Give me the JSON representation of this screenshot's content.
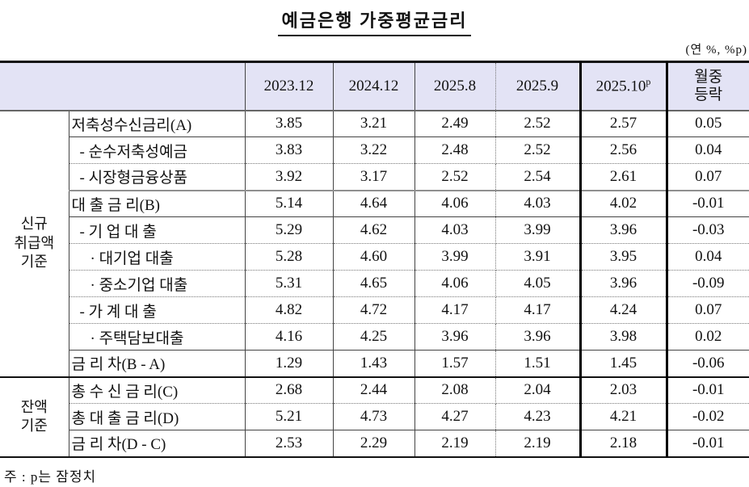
{
  "title": "예금은행 가중평균금리",
  "unit_note": "(연 %, %p)",
  "footnote": "주 : p는 잠정치",
  "colors": {
    "header_bg": "#e3e3f5",
    "highlight_border": "#000000"
  },
  "table": {
    "column_headers": [
      {
        "label": "2023.12"
      },
      {
        "label": "2024.12"
      },
      {
        "label": "2025.8"
      },
      {
        "label": "2025.9"
      },
      {
        "label": "2025.10",
        "sup": "p",
        "highlight": true
      },
      {
        "label": "월중\n등락"
      }
    ],
    "groups": [
      {
        "label": "신규\n취급액\n기준",
        "rows": 10
      },
      {
        "label": "잔액\n기준",
        "rows": 3
      }
    ],
    "rows": [
      {
        "label": "저축성수신금리(A)",
        "indent": 0,
        "divider": "solid",
        "values": [
          "3.85",
          "3.21",
          "2.49",
          "2.52",
          "2.57",
          "0.05"
        ]
      },
      {
        "label": "- 순수저축성예금",
        "indent": 1,
        "divider": "dotted",
        "values": [
          "3.83",
          "3.22",
          "2.48",
          "2.52",
          "2.56",
          "0.04"
        ]
      },
      {
        "label": "- 시장형금융상품",
        "indent": 1,
        "divider": "section",
        "values": [
          "3.92",
          "3.17",
          "2.52",
          "2.54",
          "2.61",
          "0.07"
        ]
      },
      {
        "label": "대 출 금 리(B)",
        "indent": 0,
        "divider": "solid",
        "values": [
          "5.14",
          "4.64",
          "4.06",
          "4.03",
          "4.02",
          "-0.01"
        ]
      },
      {
        "label": "- 기 업 대 출",
        "indent": 1,
        "divider": "dotted",
        "values": [
          "5.29",
          "4.62",
          "4.03",
          "3.99",
          "3.96",
          "-0.03"
        ]
      },
      {
        "label": "· 대기업 대출",
        "indent": 2,
        "divider": "dotted",
        "values": [
          "5.28",
          "4.60",
          "3.99",
          "3.91",
          "3.95",
          "0.04"
        ]
      },
      {
        "label": "· 중소기업 대출",
        "indent": 2,
        "divider": "dotted",
        "values": [
          "5.31",
          "4.65",
          "4.06",
          "4.05",
          "3.96",
          "-0.09"
        ]
      },
      {
        "label": "- 가 계 대 출",
        "indent": 1,
        "divider": "dotted",
        "values": [
          "4.82",
          "4.72",
          "4.17",
          "4.17",
          "4.24",
          "0.07"
        ]
      },
      {
        "label": "· 주택담보대출",
        "indent": 2,
        "divider": "solid",
        "values": [
          "4.16",
          "4.25",
          "3.96",
          "3.96",
          "3.98",
          "0.02"
        ]
      },
      {
        "label": "금 리 차(B - A)",
        "indent": 0,
        "divider": "group",
        "values": [
          "1.29",
          "1.43",
          "1.57",
          "1.51",
          "1.45",
          "-0.06"
        ]
      },
      {
        "label": "총 수 신 금 리(C)",
        "indent": 0,
        "divider": "dotted",
        "values": [
          "2.68",
          "2.44",
          "2.08",
          "2.04",
          "2.03",
          "-0.01"
        ]
      },
      {
        "label": "총 대 출 금 리(D)",
        "indent": 0,
        "divider": "solid",
        "values": [
          "5.21",
          "4.73",
          "4.27",
          "4.23",
          "4.21",
          "-0.02"
        ]
      },
      {
        "label": "금 리 차(D - C)",
        "indent": 0,
        "divider": "end",
        "values": [
          "2.53",
          "2.29",
          "2.19",
          "2.19",
          "2.18",
          "-0.01"
        ]
      }
    ]
  }
}
